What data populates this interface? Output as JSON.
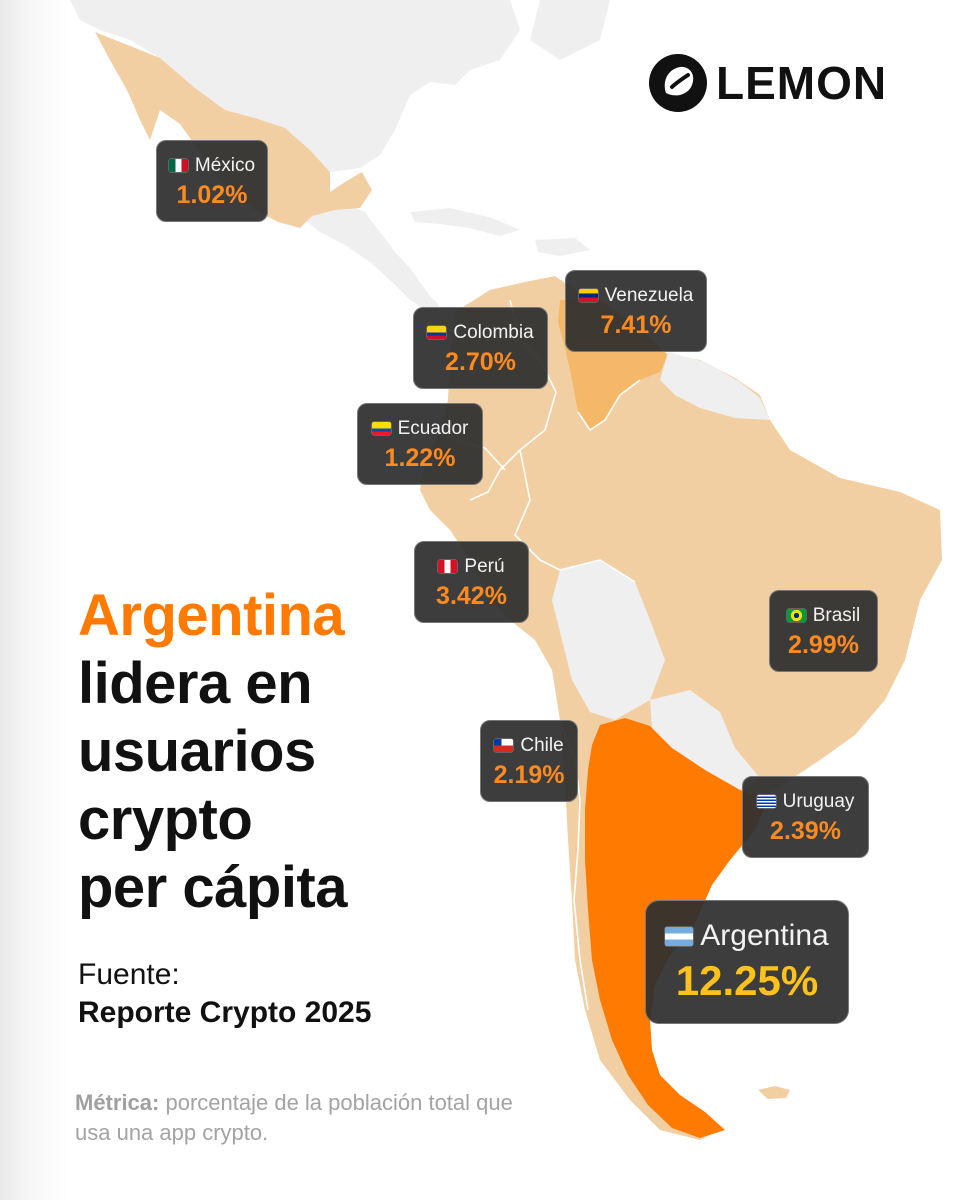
{
  "brand": {
    "name": "LEMON"
  },
  "colors": {
    "accent": "#ff7a00",
    "highlight": "#ffc21a",
    "value": "#ff8a1f",
    "map_light": "#f2cfa3",
    "map_mid": "#f5b868",
    "map_strong": "#ff7a00",
    "map_neutral": "#efefef"
  },
  "headline": {
    "accent": "Argentina",
    "lines": [
      "lidera en",
      "usuarios",
      "crypto",
      "per cápita"
    ]
  },
  "source": {
    "label": "Fuente:",
    "name": "Reporte Crypto 2025"
  },
  "metric": {
    "label": "Métrica:",
    "text": "porcentaje de la población total que usa una app crypto."
  },
  "countries": [
    {
      "name": "México",
      "value": "1.02%",
      "flag": "mexico-flag"
    },
    {
      "name": "Venezuela",
      "value": "7.41%",
      "flag": "venezuela-flag"
    },
    {
      "name": "Colombia",
      "value": "2.70%",
      "flag": "colombia-flag"
    },
    {
      "name": "Ecuador",
      "value": "1.22%",
      "flag": "ecuador-flag"
    },
    {
      "name": "Perú",
      "value": "3.42%",
      "flag": "peru-flag"
    },
    {
      "name": "Brasil",
      "value": "2.99%",
      "flag": "brazil-flag"
    },
    {
      "name": "Chile",
      "value": "2.19%",
      "flag": "chile-flag"
    },
    {
      "name": "Uruguay",
      "value": "2.39%",
      "flag": "uruguay-flag"
    },
    {
      "name": "Argentina",
      "value": "12.25%",
      "flag": "argentina-flag"
    }
  ]
}
